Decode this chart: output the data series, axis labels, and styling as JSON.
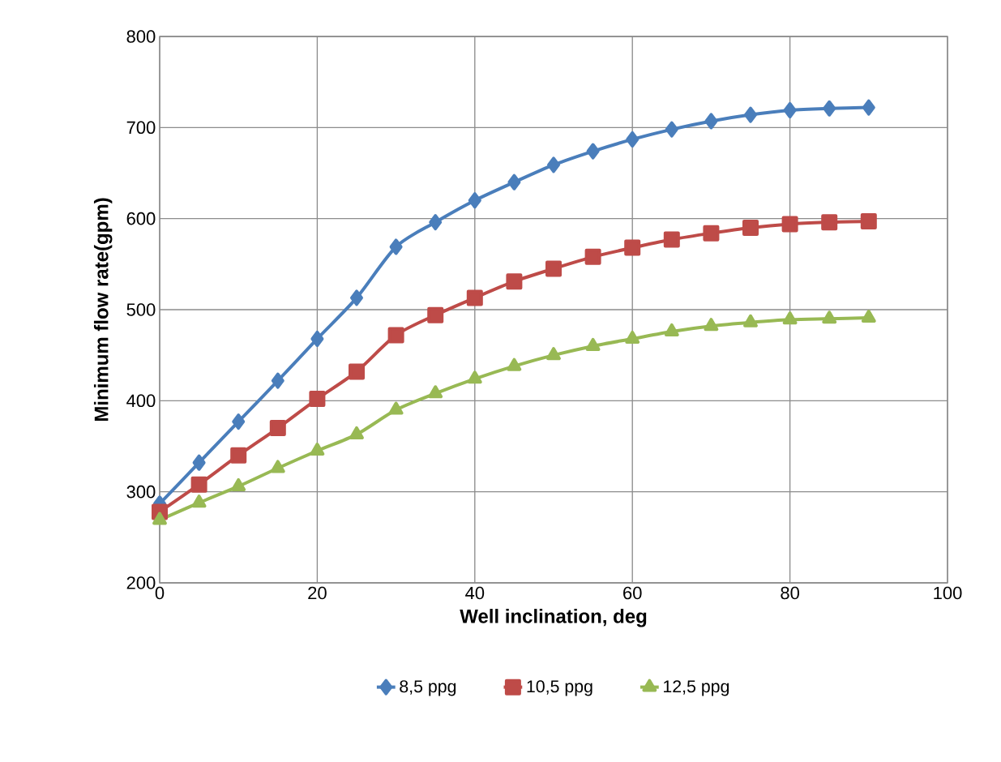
{
  "chart_data": {
    "type": "line",
    "xlabel": "Well inclination, deg",
    "ylabel": "Minimum flow rate(gpm)",
    "x": [
      0,
      5,
      10,
      15,
      20,
      25,
      30,
      35,
      40,
      45,
      50,
      55,
      60,
      65,
      70,
      75,
      80,
      85,
      90
    ],
    "series": [
      {
        "name": "8,5 ppg",
        "color": "#4a7ebb",
        "marker": "diamond",
        "values": [
          287,
          332,
          377,
          422,
          468,
          513,
          569,
          596,
          620,
          640,
          659,
          674,
          687,
          698,
          707,
          714,
          719,
          721,
          722
        ]
      },
      {
        "name": "10,5 ppg",
        "color": "#be4b48",
        "marker": "square",
        "values": [
          278,
          308,
          340,
          370,
          402,
          432,
          472,
          494,
          513,
          531,
          545,
          558,
          568,
          577,
          584,
          590,
          594,
          596,
          597
        ]
      },
      {
        "name": "12,5 ppg",
        "color": "#98b954",
        "marker": "triangle",
        "values": [
          269,
          288,
          306,
          326,
          345,
          363,
          390,
          408,
          424,
          438,
          450,
          460,
          468,
          476,
          482,
          486,
          489,
          490,
          491
        ]
      }
    ],
    "xlim": [
      0,
      100
    ],
    "xticks": [
      0,
      20,
      40,
      60,
      80,
      100
    ],
    "ylim": [
      200,
      800
    ],
    "yticks": [
      200,
      300,
      400,
      500,
      600,
      700,
      800
    ],
    "grid": true,
    "legend": "bottom",
    "line_style": "solid"
  }
}
